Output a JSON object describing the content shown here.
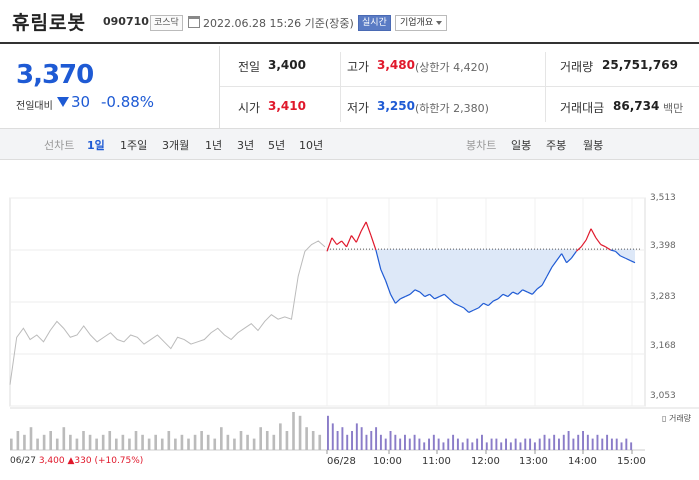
{
  "header": {
    "name": "휴림로봇",
    "code": "090710",
    "market": "코스닥",
    "datetime": "2022.06.28 15:26 기준(장중)",
    "live": "실시간",
    "info": "기업개요"
  },
  "price": {
    "current": "3,370",
    "change_label": "전일대비",
    "change": "30",
    "change_pct": "-0.88%"
  },
  "quote": {
    "prev_close_label": "전일",
    "prev_close": "3,400",
    "high_label": "고가",
    "high": "3,480",
    "upper_limit": "(상한가 4,420)",
    "volume_label": "거래량",
    "volume": "25,751,769",
    "open_label": "시가",
    "open": "3,410",
    "low_label": "저가",
    "low": "3,250",
    "lower_limit": "(하한가 2,380)",
    "amount_label": "거래대금",
    "amount": "86,734",
    "amount_unit": "백만"
  },
  "tabs": {
    "line_label": "선차트",
    "line_tabs": [
      "1일",
      "1주일",
      "3개월",
      "1년",
      "3년",
      "5년",
      "10년"
    ],
    "candle_label": "봉차트",
    "candle_tabs": [
      "일봉",
      "주봉",
      "월봉"
    ],
    "selected": "1일"
  },
  "chart_data": {
    "type": "line",
    "y_ticks": [
      "3,513",
      "3,398",
      "3,283",
      "3,168",
      "3,053"
    ],
    "ylim": [
      3053,
      3513
    ],
    "baseline": 3400,
    "x_ticks": [
      "06/27",
      "06/28",
      "10:00",
      "11:00",
      "12:00",
      "13:00",
      "14:00",
      "15:00"
    ],
    "volume_legend": "거래량",
    "prev_day": {
      "date": "06/27",
      "close": "3,400",
      "change": "▲330",
      "change_pct": "(+10.75%)",
      "values": [
        3100,
        3205,
        3225,
        3200,
        3210,
        3195,
        3220,
        3240,
        3225,
        3205,
        3210,
        3230,
        3210,
        3195,
        3205,
        3215,
        3200,
        3195,
        3210,
        3205,
        3190,
        3200,
        3210,
        3195,
        3180,
        3205,
        3200,
        3190,
        3195,
        3200,
        3215,
        3225,
        3210,
        3200,
        3215,
        3225,
        3235,
        3220,
        3240,
        3255,
        3245,
        3250,
        3245,
        3340,
        3395,
        3410,
        3418,
        3405
      ],
      "color": "#bbbbbb"
    },
    "today": {
      "values": [
        3395,
        3425,
        3410,
        3418,
        3405,
        3430,
        3415,
        3440,
        3460,
        3430,
        3398,
        3355,
        3330,
        3300,
        3280,
        3290,
        3295,
        3300,
        3310,
        3305,
        3295,
        3300,
        3290,
        3295,
        3300,
        3290,
        3280,
        3275,
        3270,
        3260,
        3265,
        3270,
        3280,
        3275,
        3285,
        3290,
        3300,
        3295,
        3305,
        3300,
        3310,
        3305,
        3300,
        3312,
        3320,
        3340,
        3360,
        3375,
        3390,
        3370,
        3380,
        3395,
        3405,
        3420,
        3445,
        3425,
        3410,
        3405,
        3398,
        3395,
        3385,
        3380,
        3375,
        3370
      ],
      "up_color": "#e0182b",
      "down_color": "#1e5ad4",
      "fill_color": "#dde8f8"
    },
    "volume_prev": [
      0.3,
      0.5,
      0.4,
      0.6,
      0.3,
      0.4,
      0.5,
      0.3,
      0.6,
      0.4,
      0.3,
      0.5,
      0.4,
      0.3,
      0.4,
      0.5,
      0.3,
      0.4,
      0.3,
      0.5,
      0.4,
      0.3,
      0.4,
      0.3,
      0.5,
      0.3,
      0.4,
      0.3,
      0.4,
      0.5,
      0.4,
      0.3,
      0.6,
      0.4,
      0.3,
      0.5,
      0.4,
      0.3,
      0.6,
      0.5,
      0.4,
      0.7,
      0.5,
      1.0,
      0.9,
      0.6,
      0.5,
      0.4
    ],
    "volume_today": [
      0.9,
      0.7,
      0.5,
      0.6,
      0.4,
      0.5,
      0.7,
      0.6,
      0.4,
      0.5,
      0.6,
      0.4,
      0.3,
      0.5,
      0.4,
      0.3,
      0.4,
      0.3,
      0.4,
      0.3,
      0.2,
      0.3,
      0.4,
      0.3,
      0.2,
      0.3,
      0.4,
      0.3,
      0.2,
      0.3,
      0.2,
      0.3,
      0.4,
      0.2,
      0.3,
      0.3,
      0.2,
      0.3,
      0.2,
      0.3,
      0.2,
      0.3,
      0.3,
      0.2,
      0.3,
      0.4,
      0.3,
      0.4,
      0.3,
      0.4,
      0.5,
      0.3,
      0.4,
      0.5,
      0.4,
      0.3,
      0.4,
      0.3,
      0.4,
      0.3,
      0.3,
      0.2,
      0.3,
      0.2
    ]
  }
}
